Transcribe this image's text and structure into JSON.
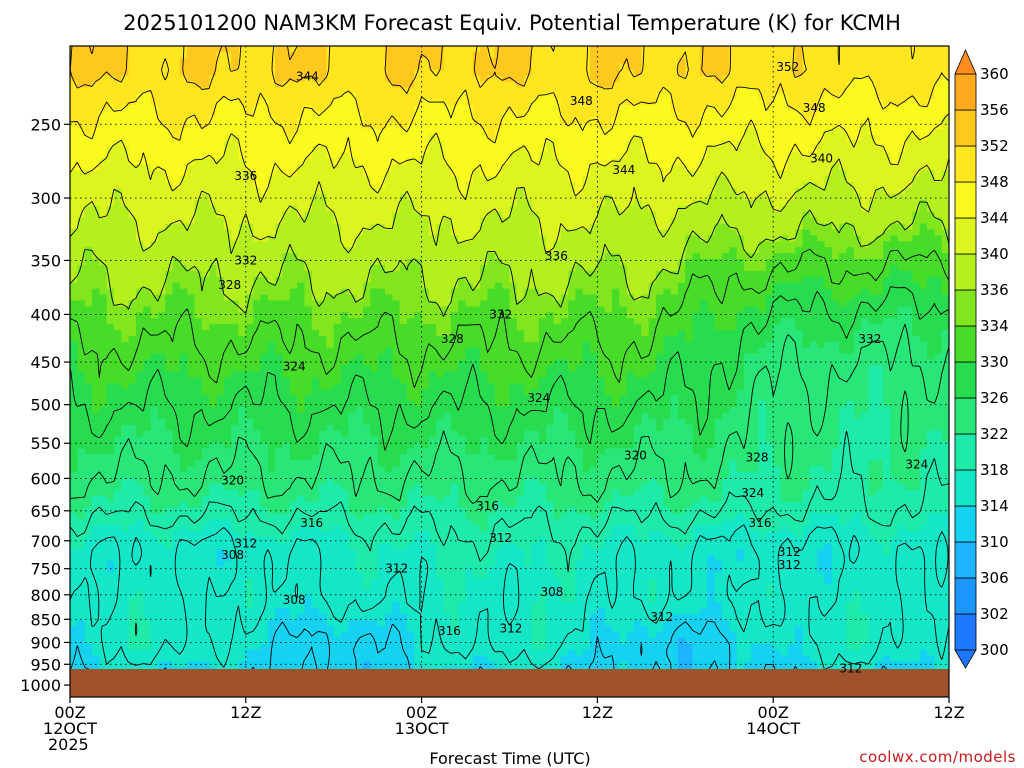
{
  "chart_data": {
    "type": "heatmap",
    "title": "2025101200 NAM3KM Forecast Equiv. Potential Temperature (K) for KCMH",
    "xlabel": "Forecast Time (UTC)",
    "ylabel": "",
    "x_ticks": [
      {
        "t": 0,
        "lines": [
          "00Z",
          "12OCT",
          "2025"
        ]
      },
      {
        "t": 12,
        "lines": [
          "12Z"
        ]
      },
      {
        "t": 24,
        "lines": [
          "00Z",
          "13OCT"
        ]
      },
      {
        "t": 36,
        "lines": [
          "12Z"
        ]
      },
      {
        "t": 48,
        "lines": [
          "00Z",
          "14OCT"
        ]
      },
      {
        "t": 60,
        "lines": [
          "12Z"
        ]
      }
    ],
    "xlim_hours": [
      0,
      60
    ],
    "y_ticks_hPa": [
      250,
      300,
      350,
      400,
      450,
      500,
      550,
      600,
      650,
      700,
      750,
      800,
      850,
      900,
      950,
      1000
    ],
    "ylim_hPa": [
      200,
      1000
    ],
    "y_scale": "log-pressure",
    "grid": "dotted",
    "colorbar": {
      "ticks": [
        300,
        302,
        306,
        310,
        314,
        318,
        322,
        326,
        330,
        334,
        336,
        340,
        344,
        348,
        352,
        356,
        360
      ],
      "colors": [
        "#1e78ff",
        "#1e96ff",
        "#1eb4ff",
        "#14d2f0",
        "#14e6c8",
        "#1eebaa",
        "#28e678",
        "#28dc50",
        "#46dc28",
        "#82e61e",
        "#b4f01e",
        "#dcf51e",
        "#fafa1e",
        "#ffe61e",
        "#ffc81e",
        "#ffaa1e",
        "#ff8c1e"
      ],
      "extend": "both"
    },
    "contour_labels": [
      {
        "v": 352,
        "t": 49.0,
        "p": 217
      },
      {
        "v": 344,
        "t": 16.2,
        "p": 222
      },
      {
        "v": 348,
        "t": 34.9,
        "p": 236
      },
      {
        "v": 348,
        "t": 50.8,
        "p": 240
      },
      {
        "v": 344,
        "t": 37.8,
        "p": 280
      },
      {
        "v": 340,
        "t": 51.3,
        "p": 272
      },
      {
        "v": 336,
        "t": 12.0,
        "p": 284
      },
      {
        "v": 336,
        "t": 33.2,
        "p": 346
      },
      {
        "v": 332,
        "t": 12.0,
        "p": 350
      },
      {
        "v": 328,
        "t": 10.9,
        "p": 372
      },
      {
        "v": 332,
        "t": 29.4,
        "p": 400
      },
      {
        "v": 332,
        "t": 54.6,
        "p": 425
      },
      {
        "v": 328,
        "t": 26.1,
        "p": 425
      },
      {
        "v": 324,
        "t": 15.3,
        "p": 455
      },
      {
        "v": 324,
        "t": 32.0,
        "p": 492
      },
      {
        "v": 320,
        "t": 38.6,
        "p": 567
      },
      {
        "v": 328,
        "t": 46.9,
        "p": 570
      },
      {
        "v": 324,
        "t": 57.8,
        "p": 580
      },
      {
        "v": 320,
        "t": 11.1,
        "p": 603
      },
      {
        "v": 324,
        "t": 46.6,
        "p": 622
      },
      {
        "v": 316,
        "t": 28.5,
        "p": 642
      },
      {
        "v": 316,
        "t": 16.5,
        "p": 670
      },
      {
        "v": 316,
        "t": 47.1,
        "p": 670
      },
      {
        "v": 312,
        "t": 29.4,
        "p": 695
      },
      {
        "v": 312,
        "t": 12.0,
        "p": 705
      },
      {
        "v": 312,
        "t": 49.1,
        "p": 720
      },
      {
        "v": 308,
        "t": 11.1,
        "p": 725
      },
      {
        "v": 312,
        "t": 49.1,
        "p": 743
      },
      {
        "v": 312,
        "t": 22.3,
        "p": 750
      },
      {
        "v": 308,
        "t": 32.9,
        "p": 795
      },
      {
        "v": 308,
        "t": 15.3,
        "p": 810
      },
      {
        "v": 312,
        "t": 40.4,
        "p": 845
      },
      {
        "v": 316,
        "t": 25.9,
        "p": 875
      },
      {
        "v": 312,
        "t": 30.1,
        "p": 870
      },
      {
        "v": 312,
        "t": 53.3,
        "p": 960
      }
    ]
  },
  "credit": "coolwx.com/models"
}
